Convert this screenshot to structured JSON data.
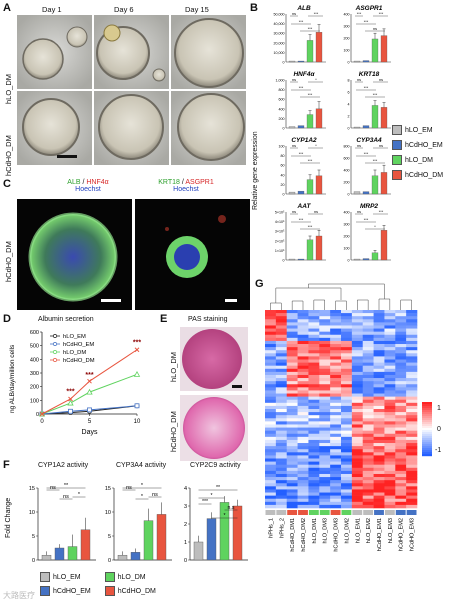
{
  "panels": {
    "A": {
      "label": "A",
      "columns": [
        "Day 1",
        "Day 6",
        "Day 15"
      ],
      "rows": [
        "hLO_DM",
        "hCdHO_DM"
      ]
    },
    "B": {
      "label": "B",
      "y_axis_title": "Relative gene expression",
      "legend": [
        "hLO_EM",
        "hCdHO_EM",
        "hLO_DM",
        "hCdHO_DM"
      ],
      "legend_colors": [
        "#bdbdbd",
        "#4472c4",
        "#5fd35f",
        "#e8553f"
      ],
      "genes": [
        {
          "name": "ALB",
          "ymax": "50,000",
          "ticks": [
            "50,000",
            "40,000",
            "30,000",
            "20,000",
            "10,000",
            "0"
          ],
          "values": [
            0.02,
            0.02,
            0.45,
            0.62
          ],
          "err": [
            0,
            0,
            0.12,
            0.16
          ],
          "sig": [
            "ns",
            "***",
            "***",
            "***"
          ]
        },
        {
          "name": "ASGPR1",
          "ymax": "400",
          "ticks": [
            "400",
            "300",
            "200",
            "100",
            "0"
          ],
          "values": [
            0.02,
            0.03,
            0.48,
            0.55
          ],
          "err": [
            0,
            0,
            0.12,
            0.14
          ],
          "sig": [
            "***",
            "***",
            "ns",
            "***"
          ]
        },
        {
          "name": "HNF4α",
          "ymax": "1,000",
          "ticks": [
            "1,000",
            "800",
            "600",
            "400",
            "200",
            "0"
          ],
          "values": [
            0.03,
            0.05,
            0.28,
            0.4
          ],
          "err": [
            0,
            0,
            0.08,
            0.15
          ],
          "sig": [
            "ns",
            "***",
            "***",
            "*"
          ]
        },
        {
          "name": "KRT18",
          "ymax": "8",
          "ticks": [
            "8",
            "6",
            "4",
            "2",
            "0"
          ],
          "values": [
            0.02,
            0.05,
            0.47,
            0.43
          ],
          "err": [
            0,
            0,
            0.1,
            0.1
          ],
          "sig": [
            "ns",
            "***",
            "***",
            "ns"
          ]
        },
        {
          "name": "CYP1A2",
          "ymax": "100",
          "ticks": [
            "100",
            "80",
            "60",
            "40",
            "20",
            "0"
          ],
          "values": [
            0.04,
            0.06,
            0.3,
            0.38
          ],
          "err": [
            0,
            0,
            0.1,
            0.12
          ],
          "sig": [
            "ns",
            "***",
            "***",
            "*"
          ]
        },
        {
          "name": "CYP3A4",
          "ymax": "800",
          "ticks": [
            "800",
            "600",
            "400",
            "200",
            "0"
          ],
          "values": [
            0.05,
            0.05,
            0.38,
            0.45
          ],
          "err": [
            0,
            0,
            0.12,
            0.15
          ],
          "sig": [
            "ns",
            "***",
            "***",
            "ns"
          ]
        },
        {
          "name": "AAT",
          "ymax": "5×10⁵",
          "ticks": [
            "5×10⁵",
            "4×10⁵",
            "3×10⁵",
            "2×10⁵",
            "1×10⁵",
            "0"
          ],
          "values": [
            0.02,
            0.02,
            0.42,
            0.5
          ],
          "err": [
            0,
            0,
            0.08,
            0.12
          ],
          "sig": [
            "ns",
            "***",
            "***",
            "ns"
          ]
        },
        {
          "name": "MRP2",
          "ymax": "400",
          "ticks": [
            "400",
            "300",
            "200",
            "100",
            "0"
          ],
          "values": [
            0.02,
            0.03,
            0.15,
            0.62
          ],
          "err": [
            0,
            0,
            0.05,
            0.1
          ],
          "sig": [
            "ns",
            "***",
            "*",
            "***"
          ]
        }
      ]
    },
    "C": {
      "label": "C",
      "row": "hCdHO_DM",
      "left_title_1": "ALB",
      "left_title_2": "HNF4α",
      "left_title_3": "Hoechst",
      "right_title_1": "KRT18",
      "right_title_2": "ASGPR1",
      "right_title_3": "Hoechst",
      "sep": "/"
    },
    "D": {
      "label": "D",
      "title": "Albumin secretion",
      "ylabel": "ng ALB/day/million cells",
      "xlabel": "Days",
      "legend": [
        "hLO_EM",
        "hCdHO_EM",
        "hLO_DM",
        "hCdHO_DM"
      ],
      "x_ticks": [
        "0",
        "5",
        "10"
      ],
      "y_ticks": [
        "0",
        "100",
        "200",
        "300",
        "400",
        "500",
        "600"
      ],
      "sig": [
        "***",
        "***",
        "***"
      ]
    },
    "E": {
      "label": "E",
      "title": "PAS staining",
      "rows": [
        "hLO_DM",
        "hCdHO_DM"
      ]
    },
    "F": {
      "label": "F",
      "ylabel": "Fold Change",
      "charts": [
        {
          "title": "CYP1A2 activity",
          "ticks": [
            "0",
            "5",
            "10",
            "15"
          ]
        },
        {
          "title": "CYP3A4 activity",
          "ticks": [
            "0",
            "5",
            "10",
            "15"
          ]
        },
        {
          "title": "CYP2C9 activity",
          "ticks": [
            "0",
            "1",
            "2",
            "3",
            "4"
          ]
        }
      ],
      "legend": [
        "hLO_EM",
        "hLO_DM",
        "hCdHO_EM",
        "hCdHO_DM"
      ],
      "sig1": [
        "ns",
        "**",
        "ns",
        "*"
      ],
      "sig2": [
        "ns",
        "*",
        "*",
        "ns"
      ],
      "sig3": [
        "**",
        "*",
        "***",
        "n.s",
        "*"
      ]
    },
    "G": {
      "label": "G",
      "scale": [
        "1",
        "0",
        "-1"
      ],
      "samples": [
        "hPHs_1",
        "hPHs_2",
        "hCdHO_DM1",
        "hCdHO_DM2",
        "hLO_DM1",
        "hLO_DM3",
        "hCdHO_DM3",
        "hLO_DM2",
        "hLO_EM1",
        "hLO_EM2",
        "hCdHO_EM1",
        "hLO_EM3",
        "hCdHO_EM2",
        "hCdHO_EM3"
      ]
    }
  },
  "watermark": "大路医疗",
  "chart_data": [
    {
      "type": "bar",
      "title": "CYP1A2 activity",
      "ylabel": "Fold Change",
      "categories": [
        "hLO_EM",
        "hCdHO_EM",
        "hLO_DM",
        "hCdHO_DM"
      ],
      "values": [
        1,
        2.5,
        2.8,
        6.3
      ],
      "ylim": [
        0,
        15
      ]
    },
    {
      "type": "bar",
      "title": "CYP3A4 activity",
      "ylabel": "Fold Change",
      "categories": [
        "hLO_EM",
        "hCdHO_EM",
        "hLO_DM",
        "hCdHO_DM"
      ],
      "values": [
        1,
        1.6,
        8.2,
        9.5
      ],
      "ylim": [
        0,
        15
      ]
    },
    {
      "type": "bar",
      "title": "CYP2C9 activity",
      "ylabel": "Fold Change",
      "categories": [
        "hLO_EM",
        "hCdHO_EM",
        "hLO_DM",
        "hCdHO_DM"
      ],
      "values": [
        1,
        2.3,
        3.2,
        3.0
      ],
      "ylim": [
        0,
        4
      ]
    },
    {
      "type": "line",
      "title": "Albumin secretion",
      "xlabel": "Days",
      "ylabel": "ng ALB/day/million cells",
      "x": [
        0,
        3,
        5,
        10
      ],
      "series": [
        {
          "name": "hLO_EM",
          "values": [
            0,
            10,
            20,
            60
          ]
        },
        {
          "name": "hCdHO_EM",
          "values": [
            0,
            20,
            30,
            60
          ]
        },
        {
          "name": "hLO_DM",
          "values": [
            0,
            80,
            160,
            290
          ]
        },
        {
          "name": "hCdHO_DM",
          "values": [
            0,
            110,
            240,
            470
          ]
        }
      ],
      "ylim": [
        0,
        600
      ]
    }
  ]
}
